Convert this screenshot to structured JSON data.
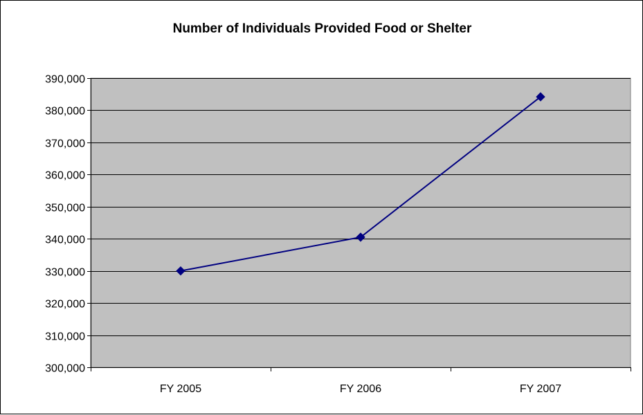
{
  "chart_data": {
    "type": "line",
    "title": "Number of Individuals Provided Food or Shelter",
    "xlabel": "",
    "ylabel": "",
    "categories": [
      "FY 2005",
      "FY 2006",
      "FY 2007"
    ],
    "series": [
      {
        "values": [
          330000,
          340500,
          384200
        ],
        "color": "#000080",
        "marker": "diamond"
      }
    ],
    "ylim": [
      300000,
      390000
    ],
    "yticks": [
      300000,
      310000,
      320000,
      330000,
      340000,
      350000,
      360000,
      370000,
      380000,
      390000
    ],
    "ytick_labels": [
      "300,000",
      "310,000",
      "320,000",
      "330,000",
      "340,000",
      "350,000",
      "360,000",
      "370,000",
      "380,000",
      "390,000"
    ],
    "grid": "horizontal",
    "legend": "none",
    "plot_background": "#c0c0c0",
    "gridline_color": "#000000"
  }
}
